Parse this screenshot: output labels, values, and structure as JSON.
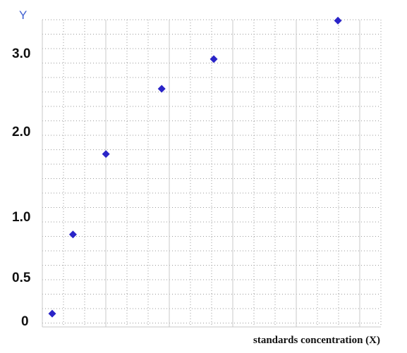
{
  "chart_data": {
    "type": "scatter",
    "title": "",
    "ylabel": "Y",
    "xlabel": "standards concentration (X)",
    "yticks": [
      "3.0",
      "2.0",
      "1.0",
      "0.5",
      "0"
    ],
    "grid": true,
    "legend": "none",
    "marker_color": "#2a24c8",
    "ylabel_color": "#3f5fd0",
    "series": [
      {
        "points": [
          {
            "x": 0.26,
            "y": 0.08
          },
          {
            "x": 0.77,
            "y": 0.85
          },
          {
            "x": 1.58,
            "y": 1.73
          },
          {
            "x": 2.95,
            "y": 2.54
          },
          {
            "x": 4.23,
            "y": 2.92
          },
          {
            "x": 7.28,
            "y": 3.41
          }
        ]
      }
    ]
  }
}
